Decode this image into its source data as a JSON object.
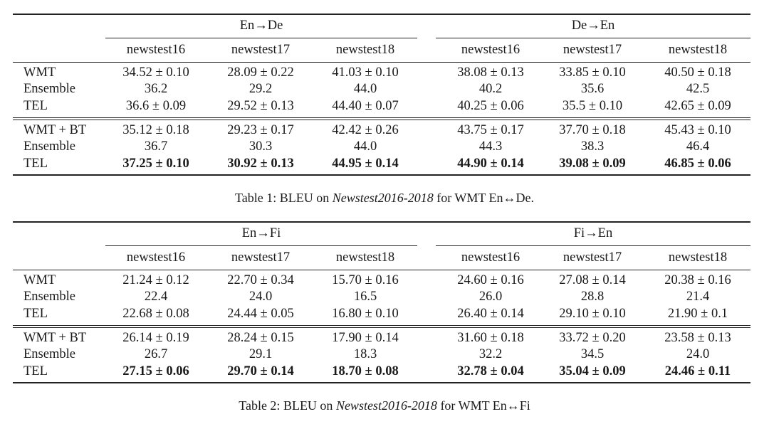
{
  "tables": [
    {
      "caption": {
        "prefix": "Table 1: BLEU on ",
        "italic": "Newstest2016-2018",
        "suffix": " for WMT En↔De."
      },
      "groups": [
        "En→De",
        "De→En"
      ],
      "subheaders": [
        "newstest16",
        "newstest17",
        "newstest18",
        "newstest16",
        "newstest17",
        "newstest18"
      ],
      "blocks": [
        [
          {
            "label": "WMT",
            "cells": [
              "34.52 ± 0.10",
              "28.09 ± 0.22",
              "41.03 ± 0.10",
              "38.08 ± 0.13",
              "33.85 ± 0.10",
              "40.50 ± 0.18"
            ],
            "bold": false
          },
          {
            "label": "Ensemble",
            "cells": [
              "36.2",
              "29.2",
              "44.0",
              "40.2",
              "35.6",
              "42.5"
            ],
            "bold": false
          },
          {
            "label": "TEL",
            "cells": [
              "36.6 ± 0.09",
              "29.52 ± 0.13",
              "44.40 ± 0.07",
              "40.25 ± 0.06",
              "35.5 ± 0.10",
              "42.65 ± 0.09"
            ],
            "bold": false
          }
        ],
        [
          {
            "label": "WMT + BT",
            "cells": [
              "35.12 ± 0.18",
              "29.23 ± 0.17",
              "42.42 ± 0.26",
              "43.75 ± 0.17",
              "37.70 ± 0.18",
              "45.43 ± 0.10"
            ],
            "bold": false
          },
          {
            "label": "Ensemble",
            "cells": [
              "36.7",
              "30.3",
              "44.0",
              "44.3",
              "38.3",
              "46.4"
            ],
            "bold": false
          },
          {
            "label": "TEL",
            "cells": [
              "37.25 ± 0.10",
              "30.92 ± 0.13",
              "44.95 ± 0.14",
              "44.90 ± 0.14",
              "39.08 ± 0.09",
              "46.85 ± 0.06"
            ],
            "bold": true
          }
        ]
      ]
    },
    {
      "caption": {
        "prefix": "Table 2: BLEU on ",
        "italic": "Newstest2016-2018",
        "suffix": " for WMT En↔Fi"
      },
      "groups": [
        "En→Fi",
        "Fi→En"
      ],
      "subheaders": [
        "newstest16",
        "newstest17",
        "newstest18",
        "newstest16",
        "newstest17",
        "newstest18"
      ],
      "blocks": [
        [
          {
            "label": "WMT",
            "cells": [
              "21.24 ± 0.12",
              "22.70 ± 0.34",
              "15.70 ± 0.16",
              "24.60 ± 0.16",
              "27.08 ± 0.14",
              "20.38 ± 0.16"
            ],
            "bold": false
          },
          {
            "label": "Ensemble",
            "cells": [
              "22.4",
              "24.0",
              "16.5",
              "26.0",
              "28.8",
              "21.4"
            ],
            "bold": false
          },
          {
            "label": "TEL",
            "cells": [
              "22.68 ± 0.08",
              "24.44 ± 0.05",
              "16.80 ± 0.10",
              "26.40 ± 0.14",
              "29.10 ± 0.10",
              "21.90 ± 0.1"
            ],
            "bold": false
          }
        ],
        [
          {
            "label": "WMT + BT",
            "cells": [
              "26.14 ± 0.19",
              "28.24 ± 0.15",
              "17.90 ± 0.14",
              "31.60 ± 0.18",
              "33.72 ± 0.20",
              "23.58 ± 0.13"
            ],
            "bold": false
          },
          {
            "label": "Ensemble",
            "cells": [
              "26.7",
              "29.1",
              "18.3",
              "32.2",
              "34.5",
              "24.0"
            ],
            "bold": false
          },
          {
            "label": "TEL",
            "cells": [
              "27.15 ± 0.06",
              "29.70 ± 0.14",
              "18.70 ± 0.08",
              "32.78 ± 0.04",
              "35.04 ± 0.09",
              "24.46 ± 0.11"
            ],
            "bold": true
          }
        ]
      ]
    }
  ]
}
